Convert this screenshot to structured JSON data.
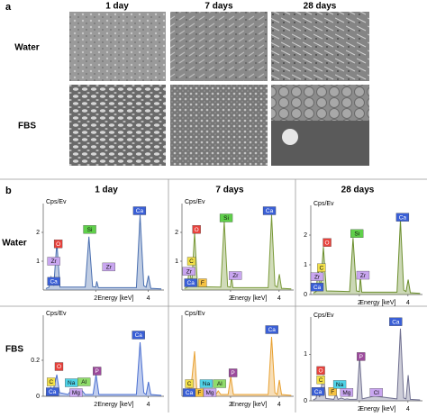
{
  "figure": {
    "panel_a": {
      "label": "a",
      "columns": [
        "1 day",
        "7 days",
        "28 days"
      ],
      "rows": [
        "Water",
        "FBS"
      ]
    },
    "panel_b": {
      "label": "b",
      "columns": [
        "1 day",
        "7 days",
        "28 days"
      ],
      "rows": [
        "Water",
        "FBS"
      ]
    }
  },
  "chart_data": [
    {
      "type": "line",
      "y_label": "Cps/Ev",
      "x_label": "Energy [keV]",
      "xlim": [
        0,
        4.6
      ],
      "xticks": [
        2,
        4
      ],
      "ylim": [
        0,
        3
      ],
      "yticks": [
        1,
        2
      ],
      "series": [
        {
          "color": "#4a6fb0",
          "x": [
            0.1,
            0.22,
            0.3,
            0.4,
            0.52,
            0.64,
            1.6,
            1.74,
            1.88,
            2.0,
            2.04,
            2.1,
            3.55,
            3.69,
            3.83,
            3.92,
            4.01,
            4.1,
            4.5
          ],
          "values": [
            0.05,
            0.1,
            0.45,
            0.15,
            1.65,
            0.1,
            0.1,
            1.85,
            0.12,
            0.1,
            0.3,
            0.08,
            0.08,
            2.6,
            0.15,
            0.1,
            0.5,
            0.06,
            0.04
          ]
        }
      ],
      "annotations": [
        {
          "label": "O",
          "x": 0.57,
          "y": 1.6,
          "color": "#e8423c"
        },
        {
          "label": "Zr",
          "x": 0.4,
          "y": 1.0,
          "color": "#c9a6f0"
        },
        {
          "label": "Ca",
          "x": 0.4,
          "y": 0.3,
          "color": "#3a5fd6"
        },
        {
          "label": "Si",
          "x": 1.77,
          "y": 2.1,
          "color": "#5fd04a"
        },
        {
          "label": "Zr",
          "x": 2.5,
          "y": 0.8,
          "color": "#c9a6f0"
        },
        {
          "label": "Ca",
          "x": 3.67,
          "y": 2.75,
          "color": "#3a5fd6"
        }
      ]
    },
    {
      "type": "line",
      "y_label": "Cps/Ev",
      "x_label": "Energy [keV]",
      "xlim": [
        0,
        4.6
      ],
      "xticks": [
        2,
        4
      ],
      "ylim": [
        0,
        3
      ],
      "yticks": [
        1,
        2
      ],
      "series": [
        {
          "color": "#7a9a3a",
          "x": [
            0.1,
            0.22,
            0.3,
            0.4,
            0.52,
            0.64,
            1.6,
            1.74,
            1.88,
            2.0,
            2.04,
            2.1,
            3.55,
            3.69,
            3.83,
            3.92,
            4.01,
            4.1,
            4.5
          ],
          "values": [
            0.05,
            0.1,
            0.8,
            0.2,
            2.0,
            0.12,
            0.1,
            2.4,
            0.12,
            0.1,
            0.5,
            0.08,
            0.08,
            2.6,
            0.15,
            0.1,
            0.55,
            0.06,
            0.04
          ]
        }
      ],
      "annotations": [
        {
          "label": "C",
          "x": 0.39,
          "y": 1.0,
          "color": "#f2e04a"
        },
        {
          "label": "Zr",
          "x": 0.29,
          "y": 0.65,
          "color": "#c9a6f0"
        },
        {
          "label": "O",
          "x": 0.6,
          "y": 2.1,
          "color": "#e8423c"
        },
        {
          "label": "Ca",
          "x": 0.36,
          "y": 0.25,
          "color": "#3a5fd6"
        },
        {
          "label": "F",
          "x": 0.85,
          "y": 0.25,
          "color": "#f5c242"
        },
        {
          "label": "Si",
          "x": 1.82,
          "y": 2.5,
          "color": "#5fd04a"
        },
        {
          "label": "Zr",
          "x": 2.2,
          "y": 0.5,
          "color": "#c9a6f0"
        },
        {
          "label": "Ca",
          "x": 3.6,
          "y": 2.75,
          "color": "#3a5fd6"
        }
      ]
    },
    {
      "type": "line",
      "y_label": "Cps/Ev",
      "x_label": "Energy [keV]",
      "xlim": [
        0,
        4.6
      ],
      "xticks": [
        2,
        4
      ],
      "ylim": [
        0,
        3
      ],
      "yticks": [
        0,
        1,
        2
      ],
      "series": [
        {
          "color": "#6c8f2e",
          "x": [
            0.1,
            0.22,
            0.3,
            0.4,
            0.52,
            0.64,
            1.6,
            1.74,
            1.88,
            2.0,
            2.04,
            2.1,
            3.55,
            3.69,
            3.83,
            3.92,
            4.01,
            4.1,
            4.5
          ],
          "values": [
            0.05,
            0.1,
            0.85,
            0.2,
            1.6,
            0.12,
            0.1,
            1.9,
            0.12,
            0.1,
            0.6,
            0.08,
            0.08,
            2.5,
            0.15,
            0.1,
            0.5,
            0.06,
            0.04
          ]
        }
      ],
      "annotations": [
        {
          "label": "C",
          "x": 0.44,
          "y": 0.9,
          "color": "#f2e04a"
        },
        {
          "label": "Zr",
          "x": 0.26,
          "y": 0.6,
          "color": "#c9a6f0"
        },
        {
          "label": "O",
          "x": 0.67,
          "y": 1.75,
          "color": "#e8423c"
        },
        {
          "label": "Ca",
          "x": 0.26,
          "y": 0.25,
          "color": "#3a5fd6"
        },
        {
          "label": "Si",
          "x": 1.9,
          "y": 2.05,
          "color": "#5fd04a"
        },
        {
          "label": "Zr",
          "x": 2.15,
          "y": 0.65,
          "color": "#c9a6f0"
        },
        {
          "label": "Ca",
          "x": 3.78,
          "y": 2.6,
          "color": "#3a5fd6"
        }
      ]
    },
    {
      "type": "line",
      "y_label": "Cps/Ev",
      "x_label": "Energy [keV]",
      "xlim": [
        0,
        4.6
      ],
      "xticks": [
        2,
        4
      ],
      "ylim": [
        0,
        0.45
      ],
      "yticks": [
        0,
        0.2
      ],
      "series": [
        {
          "color": "#4a6fd0",
          "x": [
            0.1,
            0.22,
            0.28,
            0.36,
            0.52,
            0.62,
            0.95,
            1.04,
            1.12,
            1.25,
            1.4,
            1.49,
            1.6,
            1.9,
            2.01,
            2.12,
            2.62,
            3.55,
            3.69,
            3.83,
            3.92,
            4.01,
            4.1,
            4.5
          ],
          "values": [
            0.01,
            0.02,
            0.05,
            0.02,
            0.12,
            0.02,
            0.01,
            0.03,
            0.01,
            0.015,
            0.01,
            0.03,
            0.01,
            0.01,
            0.12,
            0.01,
            0.01,
            0.01,
            0.3,
            0.02,
            0.01,
            0.08,
            0.01,
            0.005
          ]
        }
      ],
      "annotations": [
        {
          "label": "Ca",
          "x": 3.63,
          "y": 0.34,
          "color": "#3a5fd6"
        },
        {
          "label": "O",
          "x": 0.6,
          "y": 0.165,
          "color": "#e8423c"
        },
        {
          "label": "C",
          "x": 0.3,
          "y": 0.08,
          "color": "#f2e04a"
        },
        {
          "label": "Ca",
          "x": 0.35,
          "y": 0.025,
          "color": "#3a5fd6"
        },
        {
          "label": "Na",
          "x": 1.07,
          "y": 0.075,
          "color": "#4fd3e8"
        },
        {
          "label": "Mg",
          "x": 1.25,
          "y": 0.02,
          "color": "#c9a6f0"
        },
        {
          "label": "Al",
          "x": 1.55,
          "y": 0.08,
          "color": "#8fdc6a"
        },
        {
          "label": "P",
          "x": 2.05,
          "y": 0.14,
          "color": "#9c4a9c"
        }
      ]
    },
    {
      "type": "line",
      "y_label": "Cps/Ev",
      "x_label": "Energy [keV]",
      "xlim": [
        0,
        4.6
      ],
      "xticks": [
        2,
        4
      ],
      "ylim": [
        0,
        0.45
      ],
      "yticks": [],
      "series": [
        {
          "color": "#e8a030",
          "x": [
            0.1,
            0.22,
            0.28,
            0.36,
            0.52,
            0.62,
            0.95,
            1.04,
            1.12,
            1.25,
            1.4,
            1.49,
            1.6,
            1.9,
            2.01,
            2.12,
            2.62,
            3.55,
            3.69,
            3.83,
            3.92,
            4.01,
            4.1,
            4.5
          ],
          "values": [
            0.01,
            0.02,
            0.06,
            0.03,
            0.25,
            0.02,
            0.01,
            0.03,
            0.01,
            0.02,
            0.01,
            0.03,
            0.01,
            0.01,
            0.11,
            0.01,
            0.01,
            0.01,
            0.33,
            0.02,
            0.01,
            0.09,
            0.01,
            0.005
          ]
        }
      ],
      "annotations": [
        {
          "label": "Ca",
          "x": 3.7,
          "y": 0.37,
          "color": "#3a5fd6"
        },
        {
          "label": "C",
          "x": 0.3,
          "y": 0.07,
          "color": "#f2e04a"
        },
        {
          "label": "Ca",
          "x": 0.3,
          "y": 0.02,
          "color": "#3a5fd6"
        },
        {
          "label": "F",
          "x": 0.72,
          "y": 0.02,
          "color": "#f5c242"
        },
        {
          "label": "Na",
          "x": 1.0,
          "y": 0.07,
          "color": "#4fd3e8"
        },
        {
          "label": "Mg",
          "x": 1.15,
          "y": 0.02,
          "color": "#c9a6f0"
        },
        {
          "label": "Al",
          "x": 1.55,
          "y": 0.07,
          "color": "#8fdc6a"
        },
        {
          "label": "P",
          "x": 2.1,
          "y": 0.13,
          "color": "#9c4a9c"
        }
      ]
    },
    {
      "type": "line",
      "y_label": "Cps/Ev",
      "x_label": "Energy [keV]",
      "xlim": [
        0,
        4.6
      ],
      "xticks": [
        2,
        4
      ],
      "ylim": [
        0,
        1.8
      ],
      "yticks": [
        0,
        1
      ],
      "series": [
        {
          "color": "#707090",
          "x": [
            0.1,
            0.22,
            0.28,
            0.36,
            0.52,
            0.62,
            0.95,
            1.04,
            1.12,
            1.25,
            1.4,
            1.49,
            1.6,
            1.9,
            2.01,
            2.12,
            2.62,
            3.55,
            3.69,
            3.83,
            3.92,
            4.01,
            4.1,
            4.5
          ],
          "values": [
            0.02,
            0.05,
            0.25,
            0.08,
            0.55,
            0.05,
            0.03,
            0.15,
            0.03,
            0.06,
            0.03,
            0.04,
            0.03,
            0.03,
            0.95,
            0.04,
            0.1,
            0.04,
            1.55,
            0.06,
            0.04,
            0.55,
            0.03,
            0.02
          ]
        }
      ],
      "annotations": [
        {
          "label": "Ca",
          "x": 3.5,
          "y": 1.7,
          "color": "#3a5fd6"
        },
        {
          "label": "P",
          "x": 2.07,
          "y": 0.95,
          "color": "#9c4a9c"
        },
        {
          "label": "O",
          "x": 0.41,
          "y": 0.65,
          "color": "#e8423c"
        },
        {
          "label": "C",
          "x": 0.41,
          "y": 0.45,
          "color": "#f2e04a"
        },
        {
          "label": "F",
          "x": 0.9,
          "y": 0.2,
          "color": "#f5c242"
        },
        {
          "label": "Na",
          "x": 1.19,
          "y": 0.35,
          "color": "#4fd3e8"
        },
        {
          "label": "Mg",
          "x": 1.48,
          "y": 0.18,
          "color": "#c9a6f0"
        },
        {
          "label": "Cl",
          "x": 2.7,
          "y": 0.18,
          "color": "#c9a6f0"
        },
        {
          "label": "Ca",
          "x": 0.3,
          "y": 0.2,
          "color": "#3a5fd6"
        }
      ]
    }
  ]
}
